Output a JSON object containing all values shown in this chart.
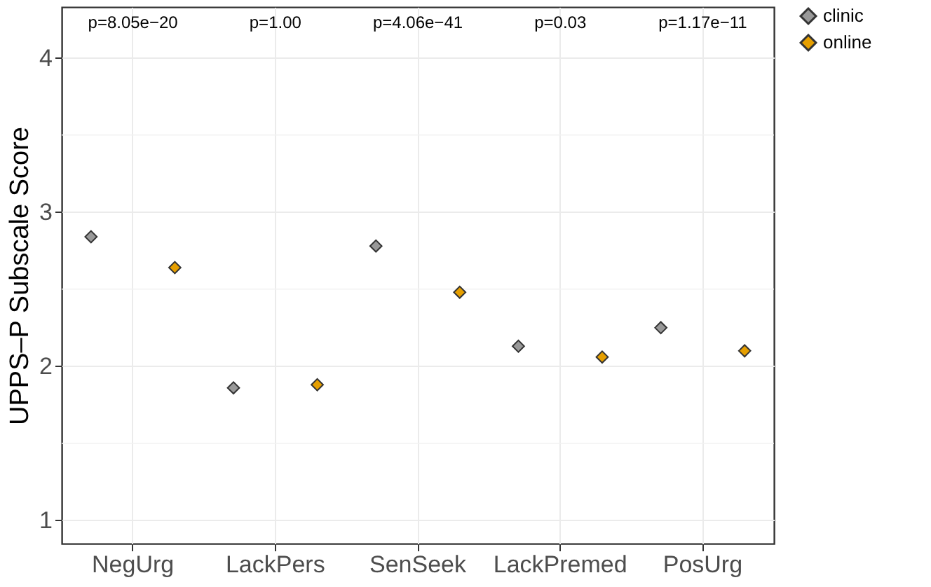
{
  "chart_data": {
    "type": "scatter",
    "ylabel": "UPPS–P Subscale Score",
    "categories": [
      "NegUrg",
      "LackPers",
      "SenSeek",
      "LackPremed",
      "PosUrg"
    ],
    "series": [
      {
        "name": "clinic",
        "color": "#999999",
        "values": [
          2.84,
          1.86,
          2.78,
          2.13,
          2.25
        ]
      },
      {
        "name": "online",
        "color": "#e69f00",
        "values": [
          2.64,
          1.88,
          2.48,
          2.06,
          2.1
        ]
      }
    ],
    "ylim": [
      0.85,
      4.33
    ],
    "yticks": [
      1,
      2,
      3,
      4
    ],
    "grid": true,
    "legend": "right",
    "marker": "diamond",
    "annotations": [
      "p=8.05e−20",
      "p=1.00",
      "p=4.06e−41",
      "p=0.03",
      "p=1.17e−11"
    ]
  }
}
